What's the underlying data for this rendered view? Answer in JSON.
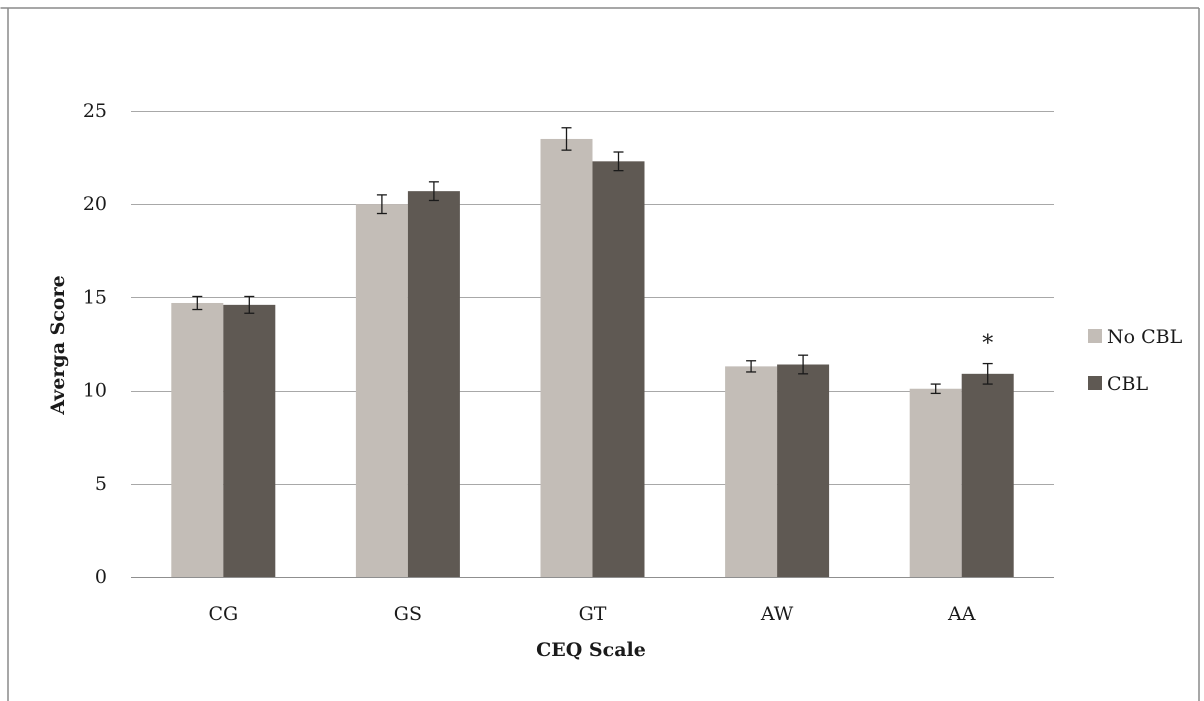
{
  "chart_data": {
    "type": "bar",
    "title": "",
    "xlabel": "CEQ Scale",
    "ylabel": "Averga Score",
    "categories": [
      "CG",
      "GS",
      "GT",
      "AW",
      "AA"
    ],
    "ylim": [
      0,
      25
    ],
    "yticks": [
      0,
      5,
      10,
      15,
      20,
      25
    ],
    "grid": true,
    "legend_position": "right",
    "series": [
      {
        "name": "No CBL",
        "color": "#c3bdb7",
        "values": [
          14.7,
          20.0,
          23.5,
          11.3,
          10.1
        ],
        "errors": [
          0.35,
          0.5,
          0.6,
          0.3,
          0.25
        ]
      },
      {
        "name": "CBL",
        "color": "#5f5953",
        "values": [
          14.6,
          20.7,
          22.3,
          11.4,
          10.9
        ],
        "errors": [
          0.45,
          0.5,
          0.5,
          0.5,
          0.55
        ]
      }
    ],
    "annotations": [
      {
        "text": "*",
        "category": "AA",
        "series": "CBL"
      }
    ]
  }
}
